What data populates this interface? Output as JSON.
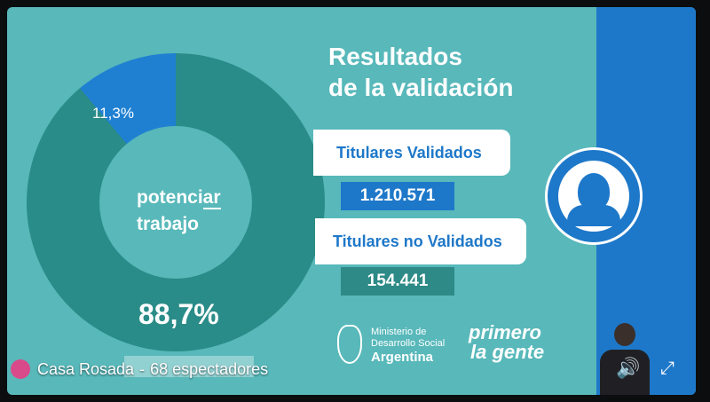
{
  "slide": {
    "title_line1": "Resultados",
    "title_line2": "de la validación",
    "donut": {
      "small_pct_label": "11,3%",
      "big_pct_label": "88,7%",
      "center_line1_a": "potenci",
      "center_line1_b": "ar",
      "center_line2": "trabajo"
    },
    "rows": [
      {
        "label": "Titulares Validados",
        "value": "1.210.571"
      },
      {
        "label": "Titulares no Validados",
        "value": "154.441"
      }
    ],
    "ministry": {
      "line1": "Ministerio de",
      "line2": "Desarrollo Social",
      "line3": "Argentina"
    },
    "primero": {
      "line1": "primero",
      "line2": "la gente"
    }
  },
  "stream": {
    "channel": "Casa Rosada",
    "separator": "-",
    "viewers": "68 espectadores"
  },
  "colors": {
    "teal": "#58b8ba",
    "blue": "#1e78c9",
    "dark_teal": "#2a8c88"
  },
  "icons": [
    "seal-icon",
    "shield-icon",
    "sound-icon",
    "expand-icon",
    "avatar"
  ],
  "chart_data": {
    "type": "pie",
    "categories": [
      "Validados",
      "No Validados"
    ],
    "values": [
      88.7,
      11.3
    ]
  }
}
